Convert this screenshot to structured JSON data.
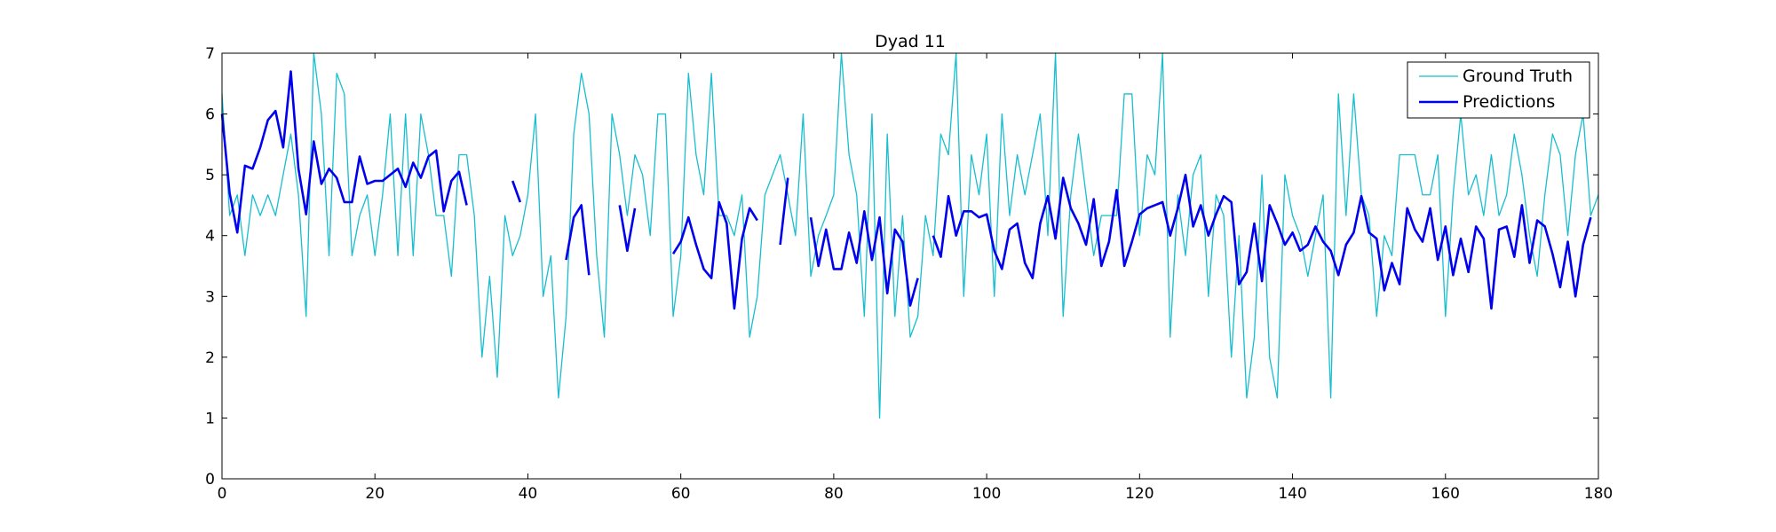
{
  "chart_data": {
    "type": "line",
    "title": "Dyad 11",
    "xlabel": "",
    "ylabel": "",
    "xlim": [
      0,
      180
    ],
    "ylim": [
      0,
      7
    ],
    "xticks": [
      0,
      20,
      40,
      60,
      80,
      100,
      120,
      140,
      160,
      180
    ],
    "yticks": [
      0,
      1,
      2,
      3,
      4,
      5,
      6,
      7
    ],
    "grid": false,
    "legend_position": "top-right",
    "series": [
      {
        "name": "Ground Truth",
        "color": "#17BECF",
        "values": [
          6.33,
          4.33,
          4.67,
          3.67,
          4.67,
          4.33,
          4.67,
          4.33,
          5.0,
          5.67,
          4.67,
          2.67,
          7.0,
          6.0,
          3.67,
          6.67,
          6.33,
          3.67,
          4.33,
          4.67,
          3.67,
          4.67,
          6.0,
          3.67,
          6.0,
          3.67,
          6.0,
          5.33,
          4.33,
          4.33,
          3.33,
          5.33,
          5.33,
          4.33,
          2.0,
          3.33,
          1.67,
          4.33,
          3.67,
          4.0,
          4.67,
          6.0,
          3.0,
          3.67,
          1.33,
          2.67,
          5.67,
          6.67,
          6.0,
          3.67,
          2.33,
          6.0,
          5.33,
          4.33,
          5.33,
          5.0,
          4.0,
          6.0,
          6.0,
          2.67,
          3.67,
          6.67,
          5.33,
          4.67,
          6.67,
          4.33,
          4.33,
          4.0,
          4.67,
          2.33,
          3.0,
          4.67,
          5.0,
          5.33,
          4.67,
          4.0,
          6.0,
          3.33,
          4.0,
          4.33,
          4.67,
          7.0,
          5.33,
          4.67,
          2.67,
          6.0,
          1.0,
          5.67,
          2.67,
          4.33,
          2.33,
          2.67,
          4.33,
          3.67,
          5.67,
          5.33,
          7.0,
          3.0,
          5.33,
          4.67,
          5.67,
          3.0,
          6.0,
          4.33,
          5.33,
          4.67,
          5.33,
          6.0,
          4.0,
          7.0,
          2.67,
          4.67,
          5.67,
          4.67,
          3.67,
          4.33,
          4.33,
          4.33,
          6.33,
          6.33,
          4.0,
          5.33,
          5.0,
          7.0,
          2.33,
          4.67,
          3.67,
          5.0,
          5.33,
          3.0,
          4.67,
          4.33,
          2.0,
          4.0,
          1.33,
          2.33,
          5.0,
          2.0,
          1.33,
          5.0,
          4.33,
          4.0,
          3.33,
          4.0,
          4.67,
          1.33,
          6.33,
          4.33,
          6.33,
          4.67,
          4.33,
          2.67,
          4.0,
          3.67,
          5.33,
          5.33,
          5.33,
          4.67,
          4.67,
          5.33,
          2.67,
          4.67,
          6.0,
          4.67,
          5.0,
          4.33,
          5.33,
          4.33,
          4.67,
          5.67,
          5.0,
          4.0,
          3.33,
          4.67,
          5.67,
          5.33,
          4.0,
          5.33,
          6.0,
          4.33,
          4.67
        ]
      },
      {
        "name": "Predictions",
        "color": "#0000EE",
        "values": [
          6.0,
          4.7,
          4.05,
          5.15,
          5.1,
          5.45,
          5.9,
          6.05,
          5.45,
          6.7,
          5.1,
          4.35,
          5.55,
          4.85,
          5.1,
          4.95,
          4.55,
          4.55,
          5.3,
          4.85,
          4.9,
          4.9,
          5.0,
          5.1,
          4.8,
          5.2,
          4.95,
          5.3,
          5.4,
          4.4,
          4.9,
          5.05,
          4.5,
          null,
          null,
          null,
          null,
          null,
          4.9,
          4.55,
          null,
          null,
          null,
          null,
          null,
          3.6,
          4.3,
          4.5,
          3.35,
          null,
          null,
          null,
          4.5,
          3.75,
          4.45,
          null,
          null,
          null,
          null,
          3.7,
          3.9,
          4.3,
          3.85,
          3.45,
          3.3,
          4.55,
          4.2,
          2.8,
          3.95,
          4.45,
          4.25,
          null,
          null,
          3.85,
          4.95,
          null,
          null,
          4.3,
          3.5,
          4.1,
          3.45,
          3.45,
          4.05,
          3.55,
          4.4,
          3.6,
          4.3,
          3.05,
          4.1,
          3.9,
          2.85,
          3.3,
          null,
          4.0,
          3.65,
          4.65,
          4.0,
          4.4,
          4.4,
          4.3,
          4.35,
          3.75,
          3.45,
          4.1,
          4.2,
          3.55,
          3.3,
          4.2,
          4.65,
          3.95,
          4.95,
          4.45,
          4.2,
          3.85,
          4.6,
          3.5,
          3.9,
          4.75,
          3.5,
          3.9,
          4.35,
          4.45,
          4.5,
          4.55,
          4.0,
          4.45,
          5.0,
          4.15,
          4.5,
          4.0,
          4.35,
          4.65,
          4.55,
          3.2,
          3.4,
          4.2,
          3.25,
          4.5,
          4.2,
          3.85,
          4.05,
          3.75,
          3.85,
          4.15,
          3.9,
          3.75,
          3.35,
          3.85,
          4.05,
          4.65,
          4.05,
          3.95,
          3.1,
          3.55,
          3.2,
          4.45,
          4.1,
          3.9,
          4.45,
          3.6,
          4.15,
          3.35,
          3.95,
          3.4,
          4.15,
          3.95,
          2.8,
          4.1,
          4.15,
          3.65,
          4.5,
          3.55,
          4.25,
          4.15,
          3.7,
          3.15,
          3.9,
          3.0,
          3.85,
          4.3
        ]
      }
    ]
  }
}
